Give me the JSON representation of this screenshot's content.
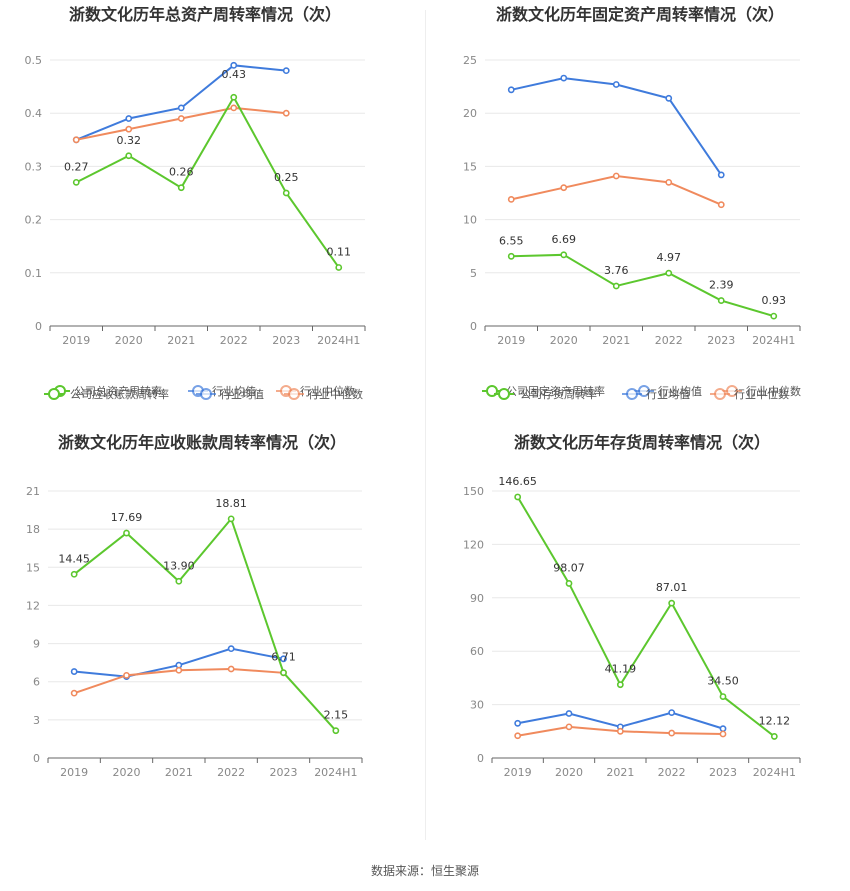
{
  "colors": {
    "company": "#5cc72e",
    "industry_avg": "#3f7bdc",
    "industry_median": "#f08a5d",
    "grid": "#e8e8e8"
  },
  "legend": {
    "company_labels": [
      "公司总资产周转率",
      "公司固定资产周转率",
      "公司应收账款周转率",
      "公司存货周转率"
    ],
    "avg": "行业均值",
    "median": "行业中位数"
  },
  "footer": "数据来源：恒生聚源",
  "chart_data": [
    {
      "type": "line",
      "title": "浙数文化历年总资产周转率情况（次）",
      "categories": [
        "2019",
        "2020",
        "2021",
        "2022",
        "2023",
        "2024H1"
      ],
      "ylim": [
        0,
        0.5
      ],
      "yticks": [
        "0",
        "0.1",
        "0.2",
        "0.3",
        "0.4",
        "0.5"
      ],
      "series": [
        {
          "name": "公司总资产周转率",
          "role": "company",
          "values": [
            0.27,
            0.32,
            0.26,
            0.43,
            0.25,
            0.11
          ],
          "labels": [
            "0.27",
            "0.32",
            "0.26",
            "0.43",
            "0.25",
            "0.11"
          ]
        },
        {
          "name": "行业均值",
          "role": "avg",
          "values": [
            0.35,
            0.39,
            0.41,
            0.49,
            0.48,
            null
          ]
        },
        {
          "name": "行业中位数",
          "role": "median",
          "values": [
            0.35,
            0.37,
            0.39,
            0.41,
            0.4,
            null
          ]
        }
      ]
    },
    {
      "type": "line",
      "title": "浙数文化历年固定资产周转率情况（次）",
      "categories": [
        "2019",
        "2020",
        "2021",
        "2022",
        "2023",
        "2024H1"
      ],
      "ylim": [
        0,
        25
      ],
      "yticks": [
        "0",
        "5",
        "10",
        "15",
        "20",
        "25"
      ],
      "series": [
        {
          "name": "公司固定资产周转率",
          "role": "company",
          "values": [
            6.55,
            6.69,
            3.76,
            4.97,
            2.39,
            0.93
          ],
          "labels": [
            "6.55",
            "6.69",
            "3.76",
            "4.97",
            "2.39",
            "0.93"
          ]
        },
        {
          "name": "行业均值",
          "role": "avg",
          "values": [
            22.2,
            23.3,
            22.7,
            21.4,
            14.2,
            null
          ]
        },
        {
          "name": "行业中位数",
          "role": "median",
          "values": [
            11.9,
            13.0,
            14.1,
            13.5,
            11.4,
            null
          ]
        }
      ]
    },
    {
      "type": "line",
      "title": "浙数文化历年应收账款周转率情况（次）",
      "categories": [
        "2019",
        "2020",
        "2021",
        "2022",
        "2023",
        "2024H1"
      ],
      "ylim": [
        0,
        21
      ],
      "yticks": [
        "0",
        "3",
        "6",
        "9",
        "12",
        "15",
        "18",
        "21"
      ],
      "series": [
        {
          "name": "公司应收账款周转率",
          "role": "company",
          "values": [
            14.45,
            17.69,
            13.9,
            18.81,
            6.71,
            2.15
          ],
          "labels": [
            "14.45",
            "17.69",
            "13.90",
            "18.81",
            "6.71",
            "2.15"
          ]
        },
        {
          "name": "行业均值",
          "role": "avg",
          "values": [
            6.8,
            6.4,
            7.3,
            8.6,
            7.8,
            null
          ]
        },
        {
          "name": "行业中位数",
          "role": "median",
          "values": [
            5.1,
            6.5,
            6.9,
            7.0,
            6.7,
            null
          ]
        }
      ]
    },
    {
      "type": "line",
      "title": "浙数文化历年存货周转率情况（次）",
      "categories": [
        "2019",
        "2020",
        "2021",
        "2022",
        "2023",
        "2024H1"
      ],
      "ylim": [
        0,
        150
      ],
      "yticks": [
        "0",
        "30",
        "60",
        "90",
        "120",
        "150"
      ],
      "series": [
        {
          "name": "公司存货周转率",
          "role": "company",
          "values": [
            146.65,
            98.07,
            41.19,
            87.01,
            34.5,
            12.12
          ],
          "labels": [
            "146.65",
            "98.07",
            "41.19",
            "87.01",
            "34.50",
            "12.12"
          ]
        },
        {
          "name": "行业均值",
          "role": "avg",
          "values": [
            19.5,
            25.0,
            17.5,
            25.5,
            16.5,
            null
          ]
        },
        {
          "name": "行业中位数",
          "role": "median",
          "values": [
            12.5,
            17.5,
            15.0,
            14.0,
            13.5,
            null
          ]
        }
      ]
    }
  ]
}
